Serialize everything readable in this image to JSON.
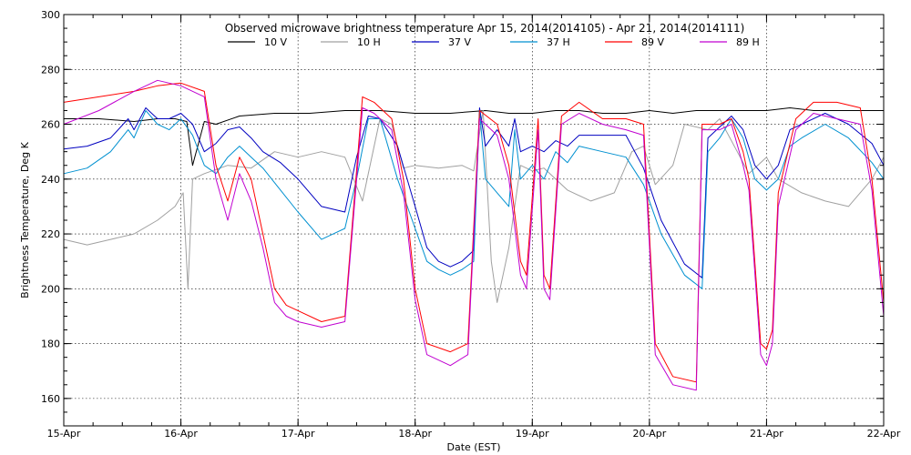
{
  "chart_data": {
    "type": "line",
    "title": "Observed microwave brightness temperature Apr 15, 2014(2014105) - Apr 21, 2014(2014111)",
    "xlabel": "Date (EST)",
    "ylabel": "Brightness Temperature, Deg K",
    "ylim": [
      150,
      300
    ],
    "xlim": [
      0,
      7
    ],
    "yticks": [
      160,
      180,
      200,
      220,
      240,
      260,
      280,
      300
    ],
    "xticks": [
      {
        "value": 0,
        "label": "15-Apr"
      },
      {
        "value": 1,
        "label": "16-Apr"
      },
      {
        "value": 2,
        "label": "17-Apr"
      },
      {
        "value": 3,
        "label": "18-Apr"
      },
      {
        "value": 4,
        "label": "19-Apr"
      },
      {
        "value": 5,
        "label": "20-Apr"
      },
      {
        "value": 6,
        "label": "21-Apr"
      },
      {
        "value": 7,
        "label": "22-Apr"
      }
    ],
    "grid": true,
    "legend_position": "top",
    "x_units": "days since 15-Apr 00:00 EST",
    "series": [
      {
        "name": "10 V",
        "color": "#000000",
        "x": [
          0,
          0.3,
          0.6,
          0.8,
          0.95,
          1.05,
          1.1,
          1.2,
          1.3,
          1.5,
          1.8,
          2.1,
          2.4,
          2.7,
          3.0,
          3.3,
          3.6,
          3.8,
          4.0,
          4.2,
          4.4,
          4.6,
          4.8,
          5.0,
          5.2,
          5.4,
          5.6,
          5.8,
          6.0,
          6.2,
          6.4,
          6.6,
          6.8,
          7.0
        ],
        "y": [
          262,
          262,
          261,
          262,
          262,
          261,
          245,
          261,
          260,
          263,
          264,
          264,
          265,
          265,
          264,
          264,
          265,
          264,
          264,
          265,
          265,
          264,
          264,
          265,
          264,
          265,
          265,
          265,
          265,
          266,
          265,
          265,
          265,
          265
        ]
      },
      {
        "name": "10 H",
        "color": "#a0a0a0",
        "x": [
          0,
          0.2,
          0.4,
          0.6,
          0.8,
          0.95,
          1.02,
          1.06,
          1.1,
          1.2,
          1.4,
          1.6,
          1.8,
          2.0,
          2.2,
          2.4,
          2.55,
          2.7,
          2.8,
          2.9,
          3.0,
          3.2,
          3.4,
          3.5,
          3.58,
          3.65,
          3.7,
          3.8,
          3.9,
          4.0,
          4.1,
          4.3,
          4.5,
          4.7,
          4.85,
          4.95,
          5.05,
          5.2,
          5.3,
          5.5,
          5.6,
          5.75,
          5.85,
          6.0,
          6.1,
          6.3,
          6.5,
          6.7,
          6.9,
          7.0
        ],
        "y": [
          218,
          216,
          218,
          220,
          225,
          230,
          235,
          200,
          240,
          242,
          245,
          244,
          250,
          248,
          250,
          248,
          232,
          262,
          260,
          244,
          245,
          244,
          245,
          243,
          265,
          210,
          195,
          215,
          245,
          243,
          244,
          236,
          232,
          235,
          250,
          252,
          238,
          245,
          260,
          258,
          262,
          250,
          242,
          248,
          240,
          235,
          232,
          230,
          240,
          248
        ]
      },
      {
        "name": "37 V",
        "color": "#0000c0",
        "x": [
          0,
          0.2,
          0.4,
          0.55,
          0.6,
          0.7,
          0.8,
          0.9,
          1.0,
          1.1,
          1.2,
          1.3,
          1.4,
          1.5,
          1.6,
          1.7,
          1.85,
          2.0,
          2.2,
          2.4,
          2.5,
          2.6,
          2.7,
          2.85,
          3.0,
          3.1,
          3.2,
          3.3,
          3.4,
          3.5,
          3.55,
          3.6,
          3.7,
          3.8,
          3.85,
          3.9,
          4.0,
          4.1,
          4.2,
          4.3,
          4.4,
          4.6,
          4.8,
          4.95,
          5.1,
          5.3,
          5.45,
          5.5,
          5.6,
          5.7,
          5.8,
          5.9,
          6.0,
          6.1,
          6.2,
          6.3,
          6.5,
          6.7,
          6.9,
          7.0
        ],
        "y": [
          251,
          252,
          255,
          262,
          258,
          266,
          262,
          262,
          264,
          260,
          250,
          253,
          258,
          259,
          255,
          250,
          246,
          240,
          230,
          228,
          248,
          263,
          262,
          252,
          230,
          215,
          210,
          208,
          210,
          214,
          266,
          252,
          258,
          252,
          262,
          250,
          252,
          250,
          254,
          252,
          256,
          256,
          256,
          244,
          225,
          209,
          204,
          255,
          259,
          263,
          258,
          245,
          240,
          245,
          258,
          260,
          264,
          260,
          253,
          245
        ]
      },
      {
        "name": "37 H",
        "color": "#0090d0",
        "x": [
          0,
          0.2,
          0.4,
          0.55,
          0.6,
          0.7,
          0.8,
          0.9,
          1.0,
          1.1,
          1.2,
          1.3,
          1.4,
          1.5,
          1.6,
          1.7,
          1.85,
          2.0,
          2.2,
          2.4,
          2.5,
          2.6,
          2.7,
          2.85,
          3.0,
          3.1,
          3.2,
          3.3,
          3.4,
          3.5,
          3.55,
          3.6,
          3.7,
          3.8,
          3.85,
          3.9,
          4.0,
          4.1,
          4.2,
          4.3,
          4.4,
          4.6,
          4.8,
          4.95,
          5.1,
          5.3,
          5.45,
          5.5,
          5.6,
          5.7,
          5.8,
          5.9,
          6.0,
          6.1,
          6.2,
          6.3,
          6.5,
          6.7,
          6.9,
          7.0
        ],
        "y": [
          242,
          244,
          250,
          258,
          255,
          265,
          260,
          258,
          262,
          256,
          245,
          242,
          248,
          252,
          248,
          244,
          236,
          228,
          218,
          222,
          240,
          262,
          262,
          240,
          222,
          210,
          207,
          205,
          207,
          210,
          265,
          240,
          235,
          230,
          258,
          240,
          245,
          240,
          250,
          246,
          252,
          250,
          248,
          238,
          220,
          205,
          200,
          250,
          255,
          262,
          255,
          240,
          236,
          240,
          252,
          255,
          260,
          255,
          246,
          240
        ]
      },
      {
        "name": "89 V",
        "color": "#ff0000",
        "x": [
          0,
          0.3,
          0.6,
          0.8,
          1.0,
          1.2,
          1.3,
          1.4,
          1.5,
          1.6,
          1.7,
          1.8,
          1.9,
          2.0,
          2.2,
          2.4,
          2.55,
          2.65,
          2.8,
          2.9,
          3.0,
          3.1,
          3.3,
          3.45,
          3.55,
          3.7,
          3.8,
          3.9,
          3.95,
          4.05,
          4.1,
          4.15,
          4.25,
          4.4,
          4.6,
          4.8,
          4.95,
          5.05,
          5.2,
          5.4,
          5.45,
          5.6,
          5.7,
          5.8,
          5.85,
          5.95,
          6.0,
          6.05,
          6.1,
          6.25,
          6.4,
          6.6,
          6.8,
          6.9,
          7.0
        ],
        "y": [
          268,
          270,
          272,
          274,
          275,
          272,
          245,
          232,
          248,
          240,
          220,
          200,
          194,
          192,
          188,
          190,
          270,
          268,
          262,
          240,
          200,
          180,
          177,
          180,
          265,
          260,
          245,
          210,
          205,
          262,
          205,
          200,
          263,
          268,
          262,
          262,
          260,
          180,
          168,
          166,
          260,
          260,
          262,
          250,
          240,
          180,
          178,
          185,
          235,
          262,
          268,
          268,
          266,
          240,
          195
        ]
      },
      {
        "name": "89 H",
        "color": "#c000d0",
        "x": [
          0,
          0.3,
          0.6,
          0.8,
          1.0,
          1.2,
          1.3,
          1.4,
          1.5,
          1.6,
          1.7,
          1.8,
          1.9,
          2.0,
          2.2,
          2.4,
          2.55,
          2.65,
          2.8,
          2.9,
          3.0,
          3.1,
          3.3,
          3.45,
          3.55,
          3.7,
          3.8,
          3.9,
          3.95,
          4.05,
          4.1,
          4.15,
          4.25,
          4.4,
          4.6,
          4.8,
          4.95,
          5.05,
          5.2,
          5.4,
          5.45,
          5.6,
          5.7,
          5.8,
          5.85,
          5.95,
          6.0,
          6.05,
          6.1,
          6.25,
          6.4,
          6.6,
          6.8,
          6.9,
          7.0
        ],
        "y": [
          260,
          265,
          272,
          276,
          274,
          270,
          240,
          225,
          242,
          232,
          215,
          195,
          190,
          188,
          186,
          188,
          266,
          264,
          258,
          235,
          196,
          176,
          172,
          176,
          262,
          256,
          240,
          205,
          200,
          258,
          200,
          196,
          260,
          264,
          260,
          258,
          256,
          176,
          165,
          163,
          258,
          258,
          260,
          245,
          236,
          176,
          172,
          180,
          230,
          258,
          264,
          262,
          260,
          236,
          190
        ]
      }
    ]
  }
}
